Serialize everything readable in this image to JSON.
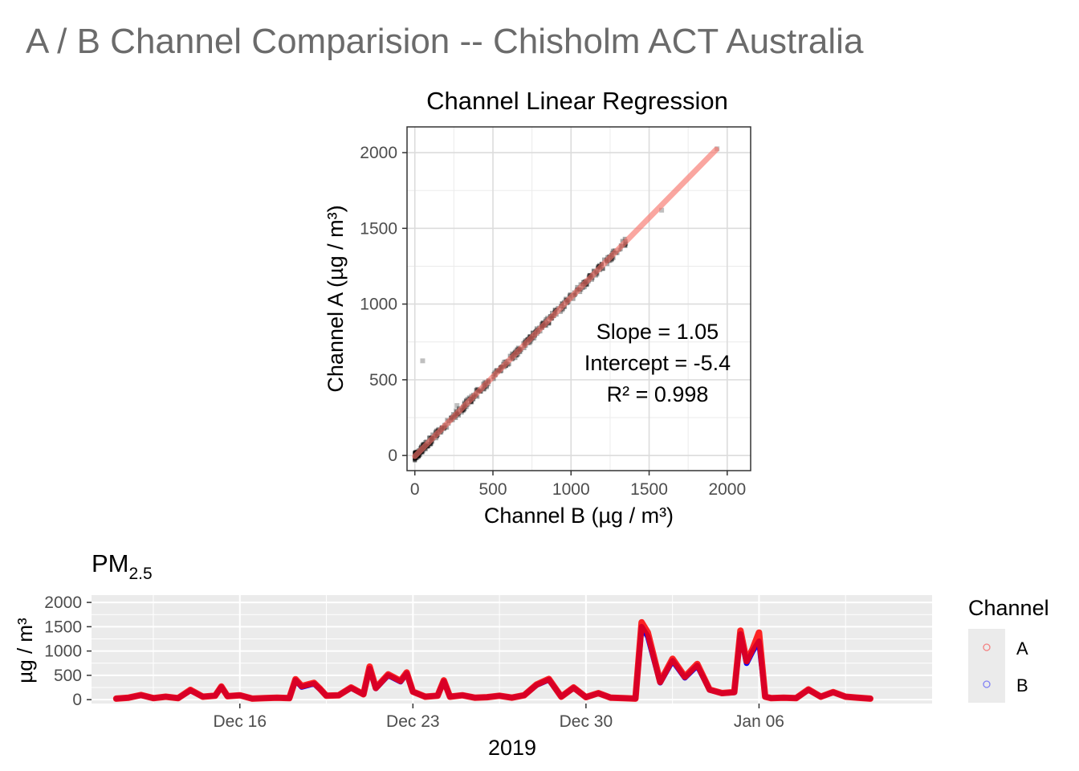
{
  "page_title": "A / B Channel Comparision -- Chisholm ACT Australia",
  "colors": {
    "title": "#6b6b6b",
    "channel_a": "#ff0000",
    "channel_b": "#0000ff",
    "fit_line": "#f8766d",
    "panel_bg": "#ebebeb",
    "grid": "#ffffff"
  },
  "chart_data": [
    {
      "type": "scatter",
      "title": "Channel Linear Regression",
      "xlabel": "Channel B (µg / m³)",
      "ylabel": "Channel A (µg / m³)",
      "xlim": [
        -50,
        2150
      ],
      "ylim": [
        -100,
        2170
      ],
      "x_ticks": [
        0,
        500,
        1000,
        1500,
        2000
      ],
      "y_ticks": [
        0,
        500,
        1000,
        1500,
        2000
      ],
      "grid": true,
      "regression": {
        "slope": 1.05,
        "intercept": -5.4,
        "r2": 0.998,
        "x_range": [
          0,
          1930
        ]
      },
      "annotation": [
        "Slope = 1.05",
        "Intercept = -5.4",
        "R² = 0.998"
      ],
      "outliers": [
        {
          "x": 50,
          "y": 625
        },
        {
          "x": 270,
          "y": 330
        },
        {
          "x": 1580,
          "y": 1620
        },
        {
          "x": 1935,
          "y": 2025
        }
      ]
    },
    {
      "type": "line",
      "title_main": "PM",
      "title_sub": "2.5",
      "xlabel": "2019",
      "ylabel": "µg / m³",
      "x_unit": "date",
      "xlim": [
        "2019-12-10",
        "2020-01-13"
      ],
      "ylim": [
        -80,
        2150
      ],
      "x_ticks": [
        {
          "date": "2019-12-16",
          "label": "Dec 16"
        },
        {
          "date": "2019-12-23",
          "label": "Dec 23"
        },
        {
          "date": "2019-12-30",
          "label": "Dec 30"
        },
        {
          "date": "2020-01-06",
          "label": "Jan 06"
        }
      ],
      "y_ticks": [
        0,
        500,
        1000,
        1500,
        2000
      ],
      "legend": {
        "title": "Channel",
        "position": "right",
        "entries": [
          "A",
          "B"
        ]
      },
      "series": [
        {
          "name": "B",
          "points": [
            [
              "2019-12-11 00:00",
              20
            ],
            [
              "2019-12-11 12:00",
              40
            ],
            [
              "2019-12-12 00:00",
              90
            ],
            [
              "2019-12-12 12:00",
              30
            ],
            [
              "2019-12-13 00:00",
              60
            ],
            [
              "2019-12-13 12:00",
              30
            ],
            [
              "2019-12-14 00:00",
              190
            ],
            [
              "2019-12-14 12:00",
              60
            ],
            [
              "2019-12-15 00:00",
              80
            ],
            [
              "2019-12-15 06:00",
              260
            ],
            [
              "2019-12-15 12:00",
              70
            ],
            [
              "2019-12-16 00:00",
              90
            ],
            [
              "2019-12-16 12:00",
              20
            ],
            [
              "2019-12-17 00:00",
              30
            ],
            [
              "2019-12-17 12:00",
              40
            ],
            [
              "2019-12-18 00:00",
              30
            ],
            [
              "2019-12-18 06:00",
              400
            ],
            [
              "2019-12-18 12:00",
              260
            ],
            [
              "2019-12-19 00:00",
              330
            ],
            [
              "2019-12-19 06:00",
              210
            ],
            [
              "2019-12-19 12:00",
              80
            ],
            [
              "2019-12-20 00:00",
              90
            ],
            [
              "2019-12-20 12:00",
              240
            ],
            [
              "2019-12-21 00:00",
              110
            ],
            [
              "2019-12-21 06:00",
              640
            ],
            [
              "2019-12-21 12:00",
              230
            ],
            [
              "2019-12-22 00:00",
              500
            ],
            [
              "2019-12-22 12:00",
              370
            ],
            [
              "2019-12-22 18:00",
              540
            ],
            [
              "2019-12-23 00:00",
              160
            ],
            [
              "2019-12-23 12:00",
              60
            ],
            [
              "2019-12-24 00:00",
              80
            ],
            [
              "2019-12-24 06:00",
              380
            ],
            [
              "2019-12-24 12:00",
              60
            ],
            [
              "2019-12-25 00:00",
              90
            ],
            [
              "2019-12-25 12:00",
              40
            ],
            [
              "2019-12-26 00:00",
              50
            ],
            [
              "2019-12-26 12:00",
              80
            ],
            [
              "2019-12-27 00:00",
              40
            ],
            [
              "2019-12-27 12:00",
              90
            ],
            [
              "2019-12-28 00:00",
              300
            ],
            [
              "2019-12-28 12:00",
              410
            ],
            [
              "2019-12-29 00:00",
              60
            ],
            [
              "2019-12-29 12:00",
              240
            ],
            [
              "2019-12-30 00:00",
              50
            ],
            [
              "2019-12-30 12:00",
              130
            ],
            [
              "2019-12-31 00:00",
              40
            ],
            [
              "2019-12-31 12:00",
              30
            ],
            [
              "2020-01-01 00:00",
              20
            ],
            [
              "2020-01-01 06:00",
              1500
            ],
            [
              "2020-01-01 12:00",
              1300
            ],
            [
              "2020-01-02 00:00",
              350
            ],
            [
              "2020-01-02 12:00",
              800
            ],
            [
              "2020-01-03 00:00",
              450
            ],
            [
              "2020-01-03 12:00",
              700
            ],
            [
              "2020-01-04 00:00",
              200
            ],
            [
              "2020-01-04 12:00",
              130
            ],
            [
              "2020-01-05 00:00",
              150
            ],
            [
              "2020-01-05 06:00",
              1350
            ],
            [
              "2020-01-05 12:00",
              750
            ],
            [
              "2020-01-05 18:00",
              1000
            ],
            [
              "2020-01-06 00:00",
              1200
            ],
            [
              "2020-01-06 06:00",
              60
            ],
            [
              "2020-01-06 12:00",
              30
            ],
            [
              "2020-01-07 00:00",
              40
            ],
            [
              "2020-01-07 12:00",
              30
            ],
            [
              "2020-01-08 00:00",
              200
            ],
            [
              "2020-01-08 12:00",
              60
            ],
            [
              "2020-01-09 00:00",
              150
            ],
            [
              "2020-01-09 12:00",
              60
            ],
            [
              "2020-01-10 00:00",
              40
            ],
            [
              "2020-01-10 12:00",
              20
            ]
          ]
        },
        {
          "name": "A",
          "points": [
            [
              "2019-12-11 00:00",
              20
            ],
            [
              "2019-12-11 12:00",
              40
            ],
            [
              "2019-12-12 00:00",
              95
            ],
            [
              "2019-12-12 12:00",
              30
            ],
            [
              "2019-12-13 00:00",
              60
            ],
            [
              "2019-12-13 12:00",
              30
            ],
            [
              "2019-12-14 00:00",
              200
            ],
            [
              "2019-12-14 12:00",
              60
            ],
            [
              "2019-12-15 00:00",
              80
            ],
            [
              "2019-12-15 06:00",
              270
            ],
            [
              "2019-12-15 12:00",
              70
            ],
            [
              "2019-12-16 00:00",
              90
            ],
            [
              "2019-12-16 12:00",
              20
            ],
            [
              "2019-12-17 00:00",
              30
            ],
            [
              "2019-12-17 12:00",
              40
            ],
            [
              "2019-12-18 00:00",
              30
            ],
            [
              "2019-12-18 06:00",
              420
            ],
            [
              "2019-12-18 12:00",
              280
            ],
            [
              "2019-12-19 00:00",
              345
            ],
            [
              "2019-12-19 06:00",
              220
            ],
            [
              "2019-12-19 12:00",
              80
            ],
            [
              "2019-12-20 00:00",
              90
            ],
            [
              "2019-12-20 12:00",
              250
            ],
            [
              "2019-12-21 00:00",
              110
            ],
            [
              "2019-12-21 06:00",
              680
            ],
            [
              "2019-12-21 12:00",
              240
            ],
            [
              "2019-12-22 00:00",
              520
            ],
            [
              "2019-12-22 12:00",
              385
            ],
            [
              "2019-12-22 18:00",
              560
            ],
            [
              "2019-12-23 00:00",
              165
            ],
            [
              "2019-12-23 12:00",
              60
            ],
            [
              "2019-12-24 00:00",
              80
            ],
            [
              "2019-12-24 06:00",
              395
            ],
            [
              "2019-12-24 12:00",
              60
            ],
            [
              "2019-12-25 00:00",
              90
            ],
            [
              "2019-12-25 12:00",
              40
            ],
            [
              "2019-12-26 00:00",
              50
            ],
            [
              "2019-12-26 12:00",
              80
            ],
            [
              "2019-12-27 00:00",
              40
            ],
            [
              "2019-12-27 12:00",
              90
            ],
            [
              "2019-12-28 00:00",
              310
            ],
            [
              "2019-12-28 12:00",
              425
            ],
            [
              "2019-12-29 00:00",
              60
            ],
            [
              "2019-12-29 12:00",
              250
            ],
            [
              "2019-12-30 00:00",
              50
            ],
            [
              "2019-12-30 12:00",
              135
            ],
            [
              "2019-12-31 00:00",
              40
            ],
            [
              "2019-12-31 12:00",
              30
            ],
            [
              "2020-01-01 00:00",
              20
            ],
            [
              "2020-01-01 06:00",
              1590
            ],
            [
              "2020-01-01 12:00",
              1380
            ],
            [
              "2020-01-02 00:00",
              365
            ],
            [
              "2020-01-02 12:00",
              840
            ],
            [
              "2020-01-03 00:00",
              470
            ],
            [
              "2020-01-03 12:00",
              735
            ],
            [
              "2020-01-04 00:00",
              205
            ],
            [
              "2020-01-04 12:00",
              135
            ],
            [
              "2020-01-05 00:00",
              155
            ],
            [
              "2020-01-05 06:00",
              1420
            ],
            [
              "2020-01-05 12:00",
              790
            ],
            [
              "2020-01-05 18:00",
              1050
            ],
            [
              "2020-01-06 00:00",
              1380
            ],
            [
              "2020-01-06 06:00",
              60
            ],
            [
              "2020-01-06 12:00",
              30
            ],
            [
              "2020-01-07 00:00",
              40
            ],
            [
              "2020-01-07 12:00",
              30
            ],
            [
              "2020-01-08 00:00",
              210
            ],
            [
              "2020-01-08 12:00",
              60
            ],
            [
              "2020-01-09 00:00",
              155
            ],
            [
              "2020-01-09 12:00",
              60
            ],
            [
              "2020-01-10 00:00",
              40
            ],
            [
              "2020-01-10 12:00",
              20
            ]
          ]
        }
      ]
    }
  ]
}
